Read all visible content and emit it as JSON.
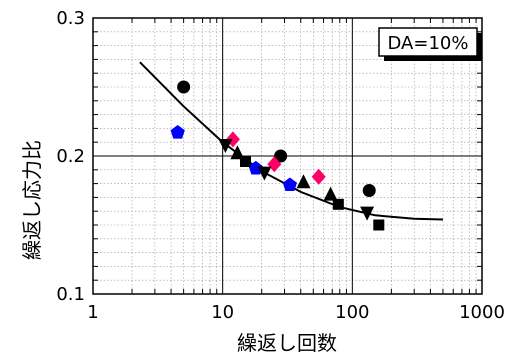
{
  "chart_data": {
    "type": "scatter",
    "xlabel": "繰返し回数",
    "ylabel": "繰返し応力比",
    "xscale": "log",
    "xlim": [
      1,
      1000
    ],
    "ylim": [
      0.1,
      0.3
    ],
    "x_ticks": [
      {
        "value": 1,
        "label": "1"
      },
      {
        "value": 10,
        "label": "10"
      },
      {
        "value": 100,
        "label": "100"
      },
      {
        "value": 1000,
        "label": "1000"
      }
    ],
    "y_ticks": [
      {
        "value": 0.1,
        "label": "0.1"
      },
      {
        "value": 0.2,
        "label": "0.2"
      },
      {
        "value": 0.3,
        "label": "0.3"
      }
    ],
    "grid": true,
    "annotation": "DA=10%",
    "series": [
      {
        "marker": "circle",
        "color": "#000000",
        "points": [
          [
            5,
            0.25
          ],
          [
            28,
            0.2
          ],
          [
            135,
            0.175
          ]
        ]
      },
      {
        "marker": "pentagon",
        "color": "#0000ff",
        "points": [
          [
            4.5,
            0.217
          ],
          [
            18,
            0.191
          ],
          [
            33,
            0.179
          ]
        ]
      },
      {
        "marker": "diamond",
        "color": "#ff0066",
        "points": [
          [
            12,
            0.212
          ],
          [
            25,
            0.194
          ],
          [
            55,
            0.185
          ]
        ]
      },
      {
        "marker": "triangle-down",
        "color": "#000000",
        "points": [
          [
            10.5,
            0.208
          ],
          [
            21,
            0.188
          ],
          [
            130,
            0.159
          ]
        ]
      },
      {
        "marker": "triangle-up",
        "color": "#000000",
        "points": [
          [
            13,
            0.202
          ],
          [
            42,
            0.181
          ],
          [
            68,
            0.172
          ]
        ]
      },
      {
        "marker": "square",
        "color": "#000000",
        "points": [
          [
            15,
            0.196
          ],
          [
            78,
            0.165
          ],
          [
            160,
            0.15
          ]
        ]
      }
    ],
    "fit_curve": [
      [
        2.3,
        0.268
      ],
      [
        5,
        0.236
      ],
      [
        10,
        0.21
      ],
      [
        20,
        0.189
      ],
      [
        40,
        0.174
      ],
      [
        80,
        0.163
      ],
      [
        150,
        0.157
      ],
      [
        300,
        0.1545
      ],
      [
        500,
        0.154
      ]
    ]
  }
}
